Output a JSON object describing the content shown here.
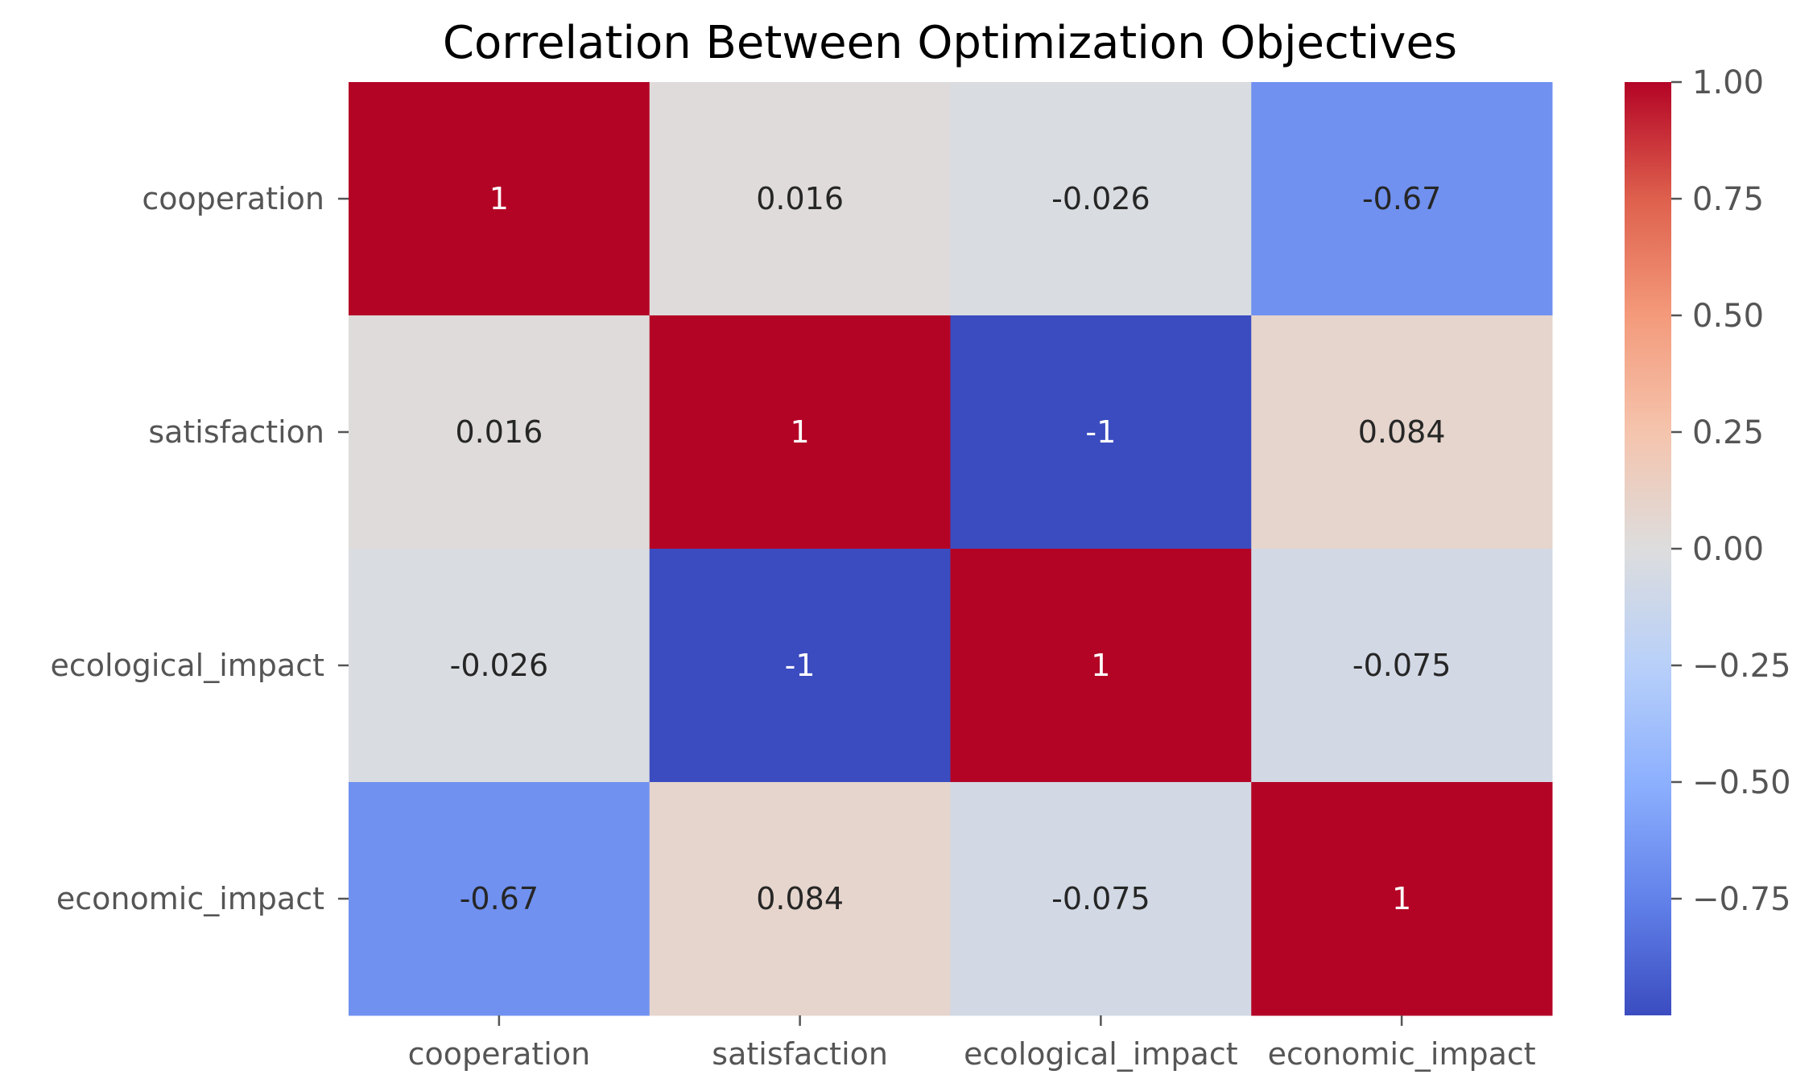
{
  "chart_data": {
    "type": "heatmap",
    "title": "Correlation Between Optimization Objectives",
    "xlabel": "",
    "ylabel": "",
    "row_labels": [
      "cooperation",
      "satisfaction",
      "ecological_impact",
      "economic_impact"
    ],
    "col_labels": [
      "cooperation",
      "satisfaction",
      "ecological_impact",
      "economic_impact"
    ],
    "values": [
      [
        1,
        0.016,
        -0.026,
        -0.67
      ],
      [
        0.016,
        1,
        -1,
        0.084
      ],
      [
        -0.026,
        -1,
        1,
        -0.075
      ],
      [
        -0.67,
        0.084,
        -0.075,
        1
      ]
    ],
    "annotations": [
      [
        "1",
        "0.016",
        "-0.026",
        "-0.67"
      ],
      [
        "0.016",
        "1",
        "-1",
        "0.084"
      ],
      [
        "-0.026",
        "-1",
        "1",
        "-0.075"
      ],
      [
        "-0.67",
        "0.084",
        "-0.075",
        "1"
      ]
    ],
    "colormap": "coolwarm",
    "colorbar": {
      "vmin": -1,
      "vmax": 1,
      "ticks": [
        1.0,
        0.75,
        0.5,
        0.25,
        0.0,
        -0.25,
        -0.5,
        -0.75
      ],
      "tick_labels": [
        "1.00",
        "0.75",
        "0.50",
        "0.25",
        "0.00",
        "−0.25",
        "−0.50",
        "−0.75"
      ]
    },
    "grid": false,
    "legend": "none"
  }
}
